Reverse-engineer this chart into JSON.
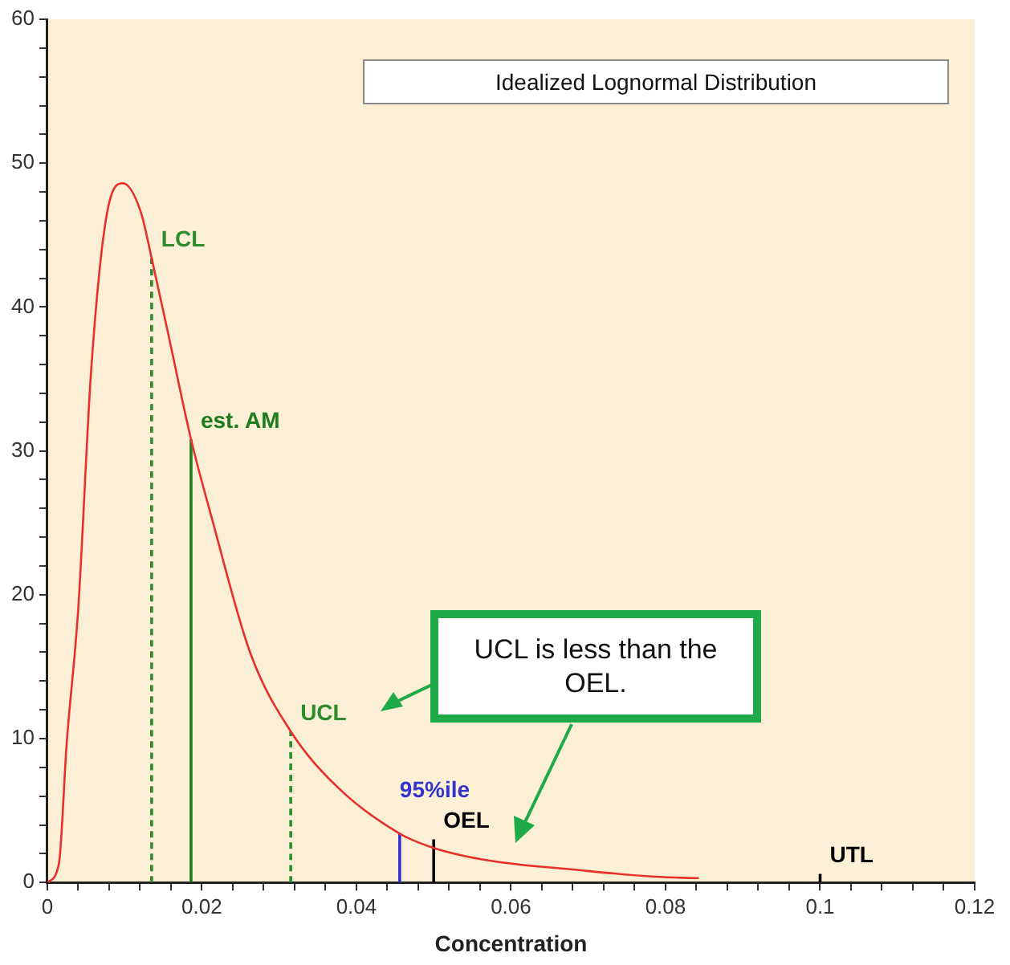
{
  "chart_data": {
    "type": "line",
    "title": "Idealized Lognormal Distribution",
    "xlabel": "Concentration",
    "xlim": [
      0,
      0.12
    ],
    "ylim": [
      0,
      60
    ],
    "xticks": [
      0,
      {
        "value": 0.004,
        "label": null
      },
      {
        "value": 0.008,
        "label": null
      },
      {
        "value": 0.012,
        "label": null
      },
      {
        "value": 0.016,
        "label": null
      },
      0.02,
      {
        "value": 0.024,
        "label": null
      },
      {
        "value": 0.028,
        "label": null
      },
      {
        "value": 0.032,
        "label": null
      },
      {
        "value": 0.036,
        "label": null
      },
      0.04,
      {
        "value": 0.044,
        "label": null
      },
      {
        "value": 0.048,
        "label": null
      },
      {
        "value": 0.052,
        "label": null
      },
      {
        "value": 0.056,
        "label": null
      },
      0.06,
      {
        "value": 0.064,
        "label": null
      },
      {
        "value": 0.068,
        "label": null
      },
      {
        "value": 0.072,
        "label": null
      },
      {
        "value": 0.076,
        "label": null
      },
      0.08,
      {
        "value": 0.084,
        "label": null
      },
      {
        "value": 0.088,
        "label": null
      },
      {
        "value": 0.092,
        "label": null
      },
      {
        "value": 0.096,
        "label": null
      },
      0.1,
      {
        "value": 0.104,
        "label": null
      },
      {
        "value": 0.108,
        "label": null
      },
      {
        "value": 0.112,
        "label": null
      },
      {
        "value": 0.116,
        "label": null
      },
      0.12
    ],
    "yticks": [
      0,
      {
        "value": 2,
        "label": null
      },
      {
        "value": 4,
        "label": null
      },
      {
        "value": 6,
        "label": null
      },
      {
        "value": 8,
        "label": null
      },
      10,
      {
        "value": 12,
        "label": null
      },
      {
        "value": 14,
        "label": null
      },
      {
        "value": 16,
        "label": null
      },
      {
        "value": 18,
        "label": null
      },
      20,
      {
        "value": 22,
        "label": null
      },
      {
        "value": 24,
        "label": null
      },
      {
        "value": 26,
        "label": null
      },
      {
        "value": 28,
        "label": null
      },
      30,
      {
        "value": 32,
        "label": null
      },
      {
        "value": 34,
        "label": null
      },
      {
        "value": 36,
        "label": null
      },
      {
        "value": 38,
        "label": null
      },
      40,
      {
        "value": 42,
        "label": null
      },
      {
        "value": 44,
        "label": null
      },
      {
        "value": 46,
        "label": null
      },
      {
        "value": 48,
        "label": null
      },
      50,
      {
        "value": 52,
        "label": null
      },
      {
        "value": 54,
        "label": null
      },
      {
        "value": 56,
        "label": null
      },
      {
        "value": 58,
        "label": null
      },
      60
    ],
    "grid": false,
    "legend": false,
    "marker": "none",
    "series": [
      {
        "color": "#e8302a",
        "line_style": "solid",
        "x": [
          0,
          0.0015,
          0.0025,
          0.004,
          0.0057,
          0.0079,
          0.0098,
          0.0121,
          0.0135,
          0.0157,
          0.0186,
          0.0213,
          0.0263,
          0.0315,
          0.0376,
          0.0456,
          0.05,
          0.0574,
          0.068,
          0.0786,
          0.0843
        ],
        "values": [
          0,
          1.3,
          9.6,
          19,
          35.8,
          47,
          48.6,
          46.6,
          43.4,
          38,
          30.8,
          25.3,
          15.9,
          10.5,
          6.6,
          3.4,
          2.4,
          1.5,
          0.9,
          0.4,
          0.3
        ]
      },
      {
        "name": "LCL",
        "color": "#2e8b2e",
        "line_style": "dashed",
        "x": [
          0.0135,
          0.0135
        ],
        "values": [
          0,
          43.4
        ]
      },
      {
        "name": "est. AM",
        "color": "#1e7b1e",
        "line_style": "solid",
        "x": [
          0.0186,
          0.0186
        ],
        "values": [
          0,
          30.8
        ]
      },
      {
        "name": "UCL",
        "color": "#2e8b2e",
        "line_style": "dashed",
        "x": [
          0.0315,
          0.0315
        ],
        "values": [
          0,
          10.5
        ]
      },
      {
        "name": "95%ile",
        "color": "#3333cc",
        "line_style": "solid",
        "x": [
          0.0456,
          0.0456
        ],
        "values": [
          0,
          3.4
        ]
      },
      {
        "name": "OEL",
        "color": "#000000",
        "line_style": "solid",
        "x": [
          0.05,
          0.05
        ],
        "values": [
          0,
          3
        ]
      },
      {
        "name": "UTL",
        "color": "#000000",
        "line_style": "solid",
        "x": [
          0.1,
          0.1
        ],
        "values": [
          0,
          0.6
        ]
      }
    ],
    "annotations": [
      "UCL is less than the OEL."
    ]
  }
}
